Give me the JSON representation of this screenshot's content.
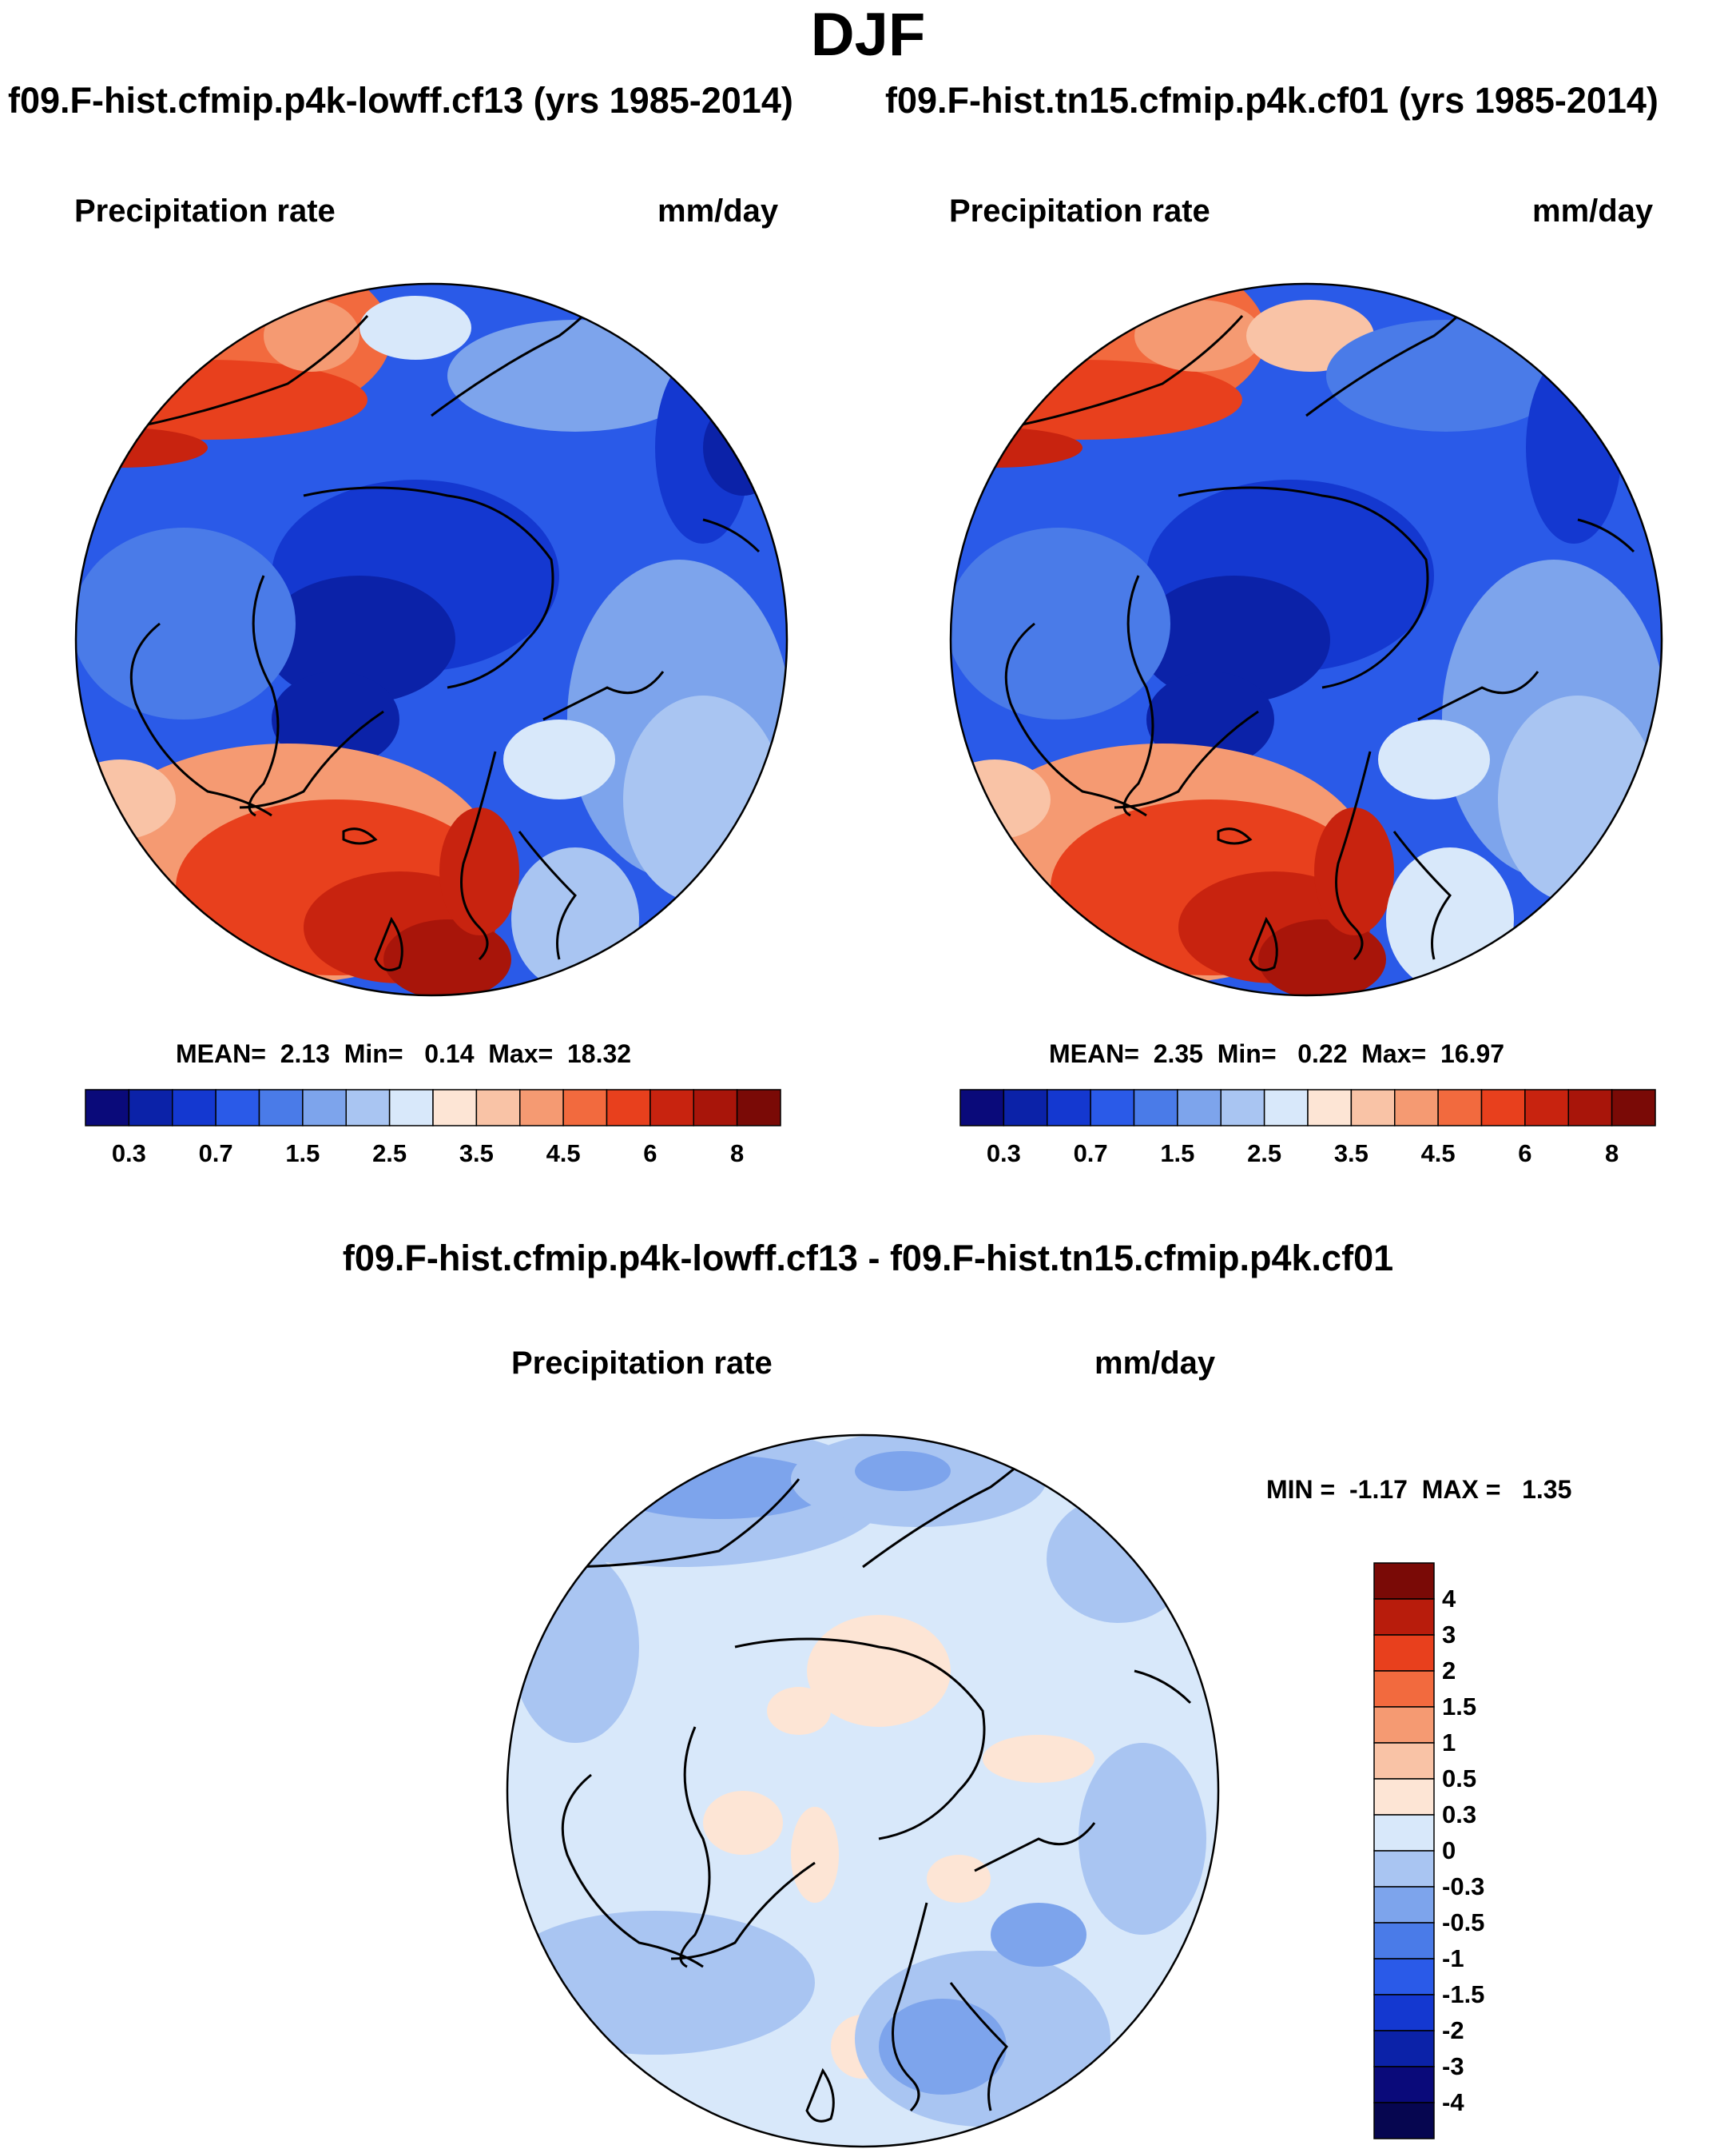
{
  "figure": {
    "season": "DJF",
    "case_a_title": "f09.F-hist.cfmip.p4k-lowff.cf13 (yrs 1985-2014)",
    "case_b_title": "f09.F-hist.tn15.cfmip.p4k.cf01 (yrs 1985-2014)",
    "diff_title": "f09.F-hist.cfmip.p4k-lowff.cf13 - f09.F-hist.tn15.cfmip.p4k.cf01"
  },
  "panels": {
    "a": {
      "variable": "Precipitation rate",
      "units": "mm/day",
      "stats": "MEAN=  2.13  Min=   0.14  Max=  18.32"
    },
    "b": {
      "variable": "Precipitation rate",
      "units": "mm/day",
      "stats": "MEAN=  2.35  Min=   0.22  Max=  16.97"
    },
    "diff": {
      "variable": "Precipitation rate",
      "units": "mm/day",
      "stats": "MIN =  -1.17  MAX =   1.35"
    }
  },
  "colorbars": {
    "abs": {
      "colors": [
        "#0a0a7a",
        "#0b22a8",
        "#1438d0",
        "#2a5ae8",
        "#4a7be8",
        "#7da4ec",
        "#a9c5f2",
        "#d8e8fa",
        "#fde5d5",
        "#f9c3a6",
        "#f59a72",
        "#f26a3e",
        "#e8401d",
        "#c8230f",
        "#a8150a",
        "#7a0a06"
      ],
      "tick_labels": [
        "0.3",
        "0.7",
        "1.5",
        "2.5",
        "3.5",
        "4.5",
        "6",
        "8"
      ]
    },
    "diff": {
      "colors": [
        "#7a0a06",
        "#b81c0c",
        "#e8401d",
        "#f26a3e",
        "#f59a72",
        "#f9c3a6",
        "#fde5d5",
        "#d8e8fa",
        "#a9c5f2",
        "#7da4ec",
        "#4a7be8",
        "#2a5ae8",
        "#1438d0",
        "#0b22a8",
        "#0a0a7a"
      ],
      "tick_labels": [
        "4",
        "3",
        "2",
        "1.5",
        "1",
        "0.5",
        "0.3",
        "0",
        "-0.3",
        "-0.5",
        "-1",
        "-1.5",
        "-2",
        "-3",
        "-4"
      ]
    }
  },
  "chart_data": [
    {
      "type": "heatmap",
      "title": "Precipitation rate",
      "units": "mm/day",
      "case": "f09.F-hist.cfmip.p4k-lowff.cf13 (yrs 1985-2014)",
      "projection": "north polar stereographic",
      "mean": 2.13,
      "min": 0.14,
      "max": 18.32,
      "contour_levels": [
        0.2,
        0.3,
        0.5,
        0.7,
        1,
        1.5,
        2,
        2.5,
        3,
        3.5,
        4,
        4.5,
        5,
        6,
        7,
        8
      ]
    },
    {
      "type": "heatmap",
      "title": "Precipitation rate",
      "units": "mm/day",
      "case": "f09.F-hist.tn15.cfmip.p4k.cf01 (yrs 1985-2014)",
      "projection": "north polar stereographic",
      "mean": 2.35,
      "min": 0.22,
      "max": 16.97,
      "contour_levels": [
        0.2,
        0.3,
        0.5,
        0.7,
        1,
        1.5,
        2,
        2.5,
        3,
        3.5,
        4,
        4.5,
        5,
        6,
        7,
        8
      ]
    },
    {
      "type": "heatmap",
      "title": "Precipitation rate",
      "units": "mm/day",
      "case": "f09.F-hist.cfmip.p4k-lowff.cf13 - f09.F-hist.tn15.cfmip.p4k.cf01",
      "projection": "north polar stereographic",
      "min": -1.17,
      "max": 1.35,
      "contour_levels": [
        -4,
        -3,
        -2,
        -1.5,
        -1,
        -0.5,
        -0.3,
        0,
        0.3,
        0.5,
        1,
        1.5,
        2,
        3,
        4
      ]
    }
  ]
}
